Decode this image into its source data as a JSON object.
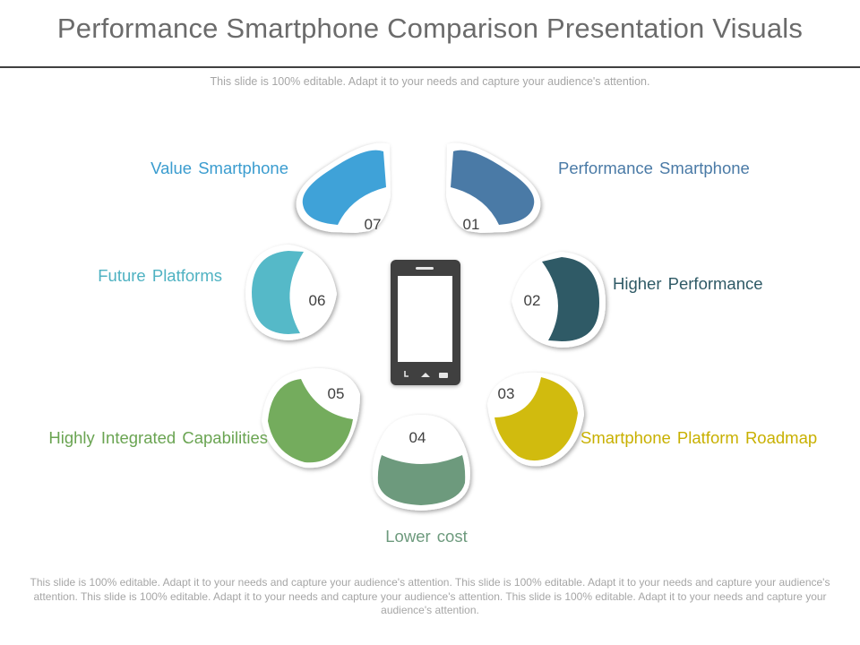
{
  "header": {
    "title": "Performance Smartphone Comparison Presentation Visuals",
    "subtitle": "This slide is 100% editable. Adapt it to your needs and capture your audience's attention."
  },
  "footer": {
    "text": "This slide is 100% editable. Adapt it to your needs and capture your audience's attention. This slide is 100% editable. Adapt it to your needs and capture your audience's attention. This slide is 100% editable. Adapt it to your needs and capture your audience's attention. This slide is 100% editable. Adapt it to your needs and capture your audience's attention."
  },
  "center_icon": "smartphone-icon",
  "petals": [
    {
      "number": "01",
      "label": "Performance Smartphone",
      "color": "#4a7aa6"
    },
    {
      "number": "02",
      "label": "Higher Performance",
      "color": "#2f5a66"
    },
    {
      "number": "03",
      "label": "Smartphone Platform Roadmap",
      "color": "#d1bb0e"
    },
    {
      "number": "04",
      "label": "Lower cost",
      "color": "#6d9a7d"
    },
    {
      "number": "05",
      "label": "Highly Integrated Capabilities",
      "color": "#74ac5d"
    },
    {
      "number": "06",
      "label": "Future Platforms",
      "color": "#55b9c8"
    },
    {
      "number": "07",
      "label": "Value Smartphone",
      "color": "#3fa2d8"
    }
  ]
}
